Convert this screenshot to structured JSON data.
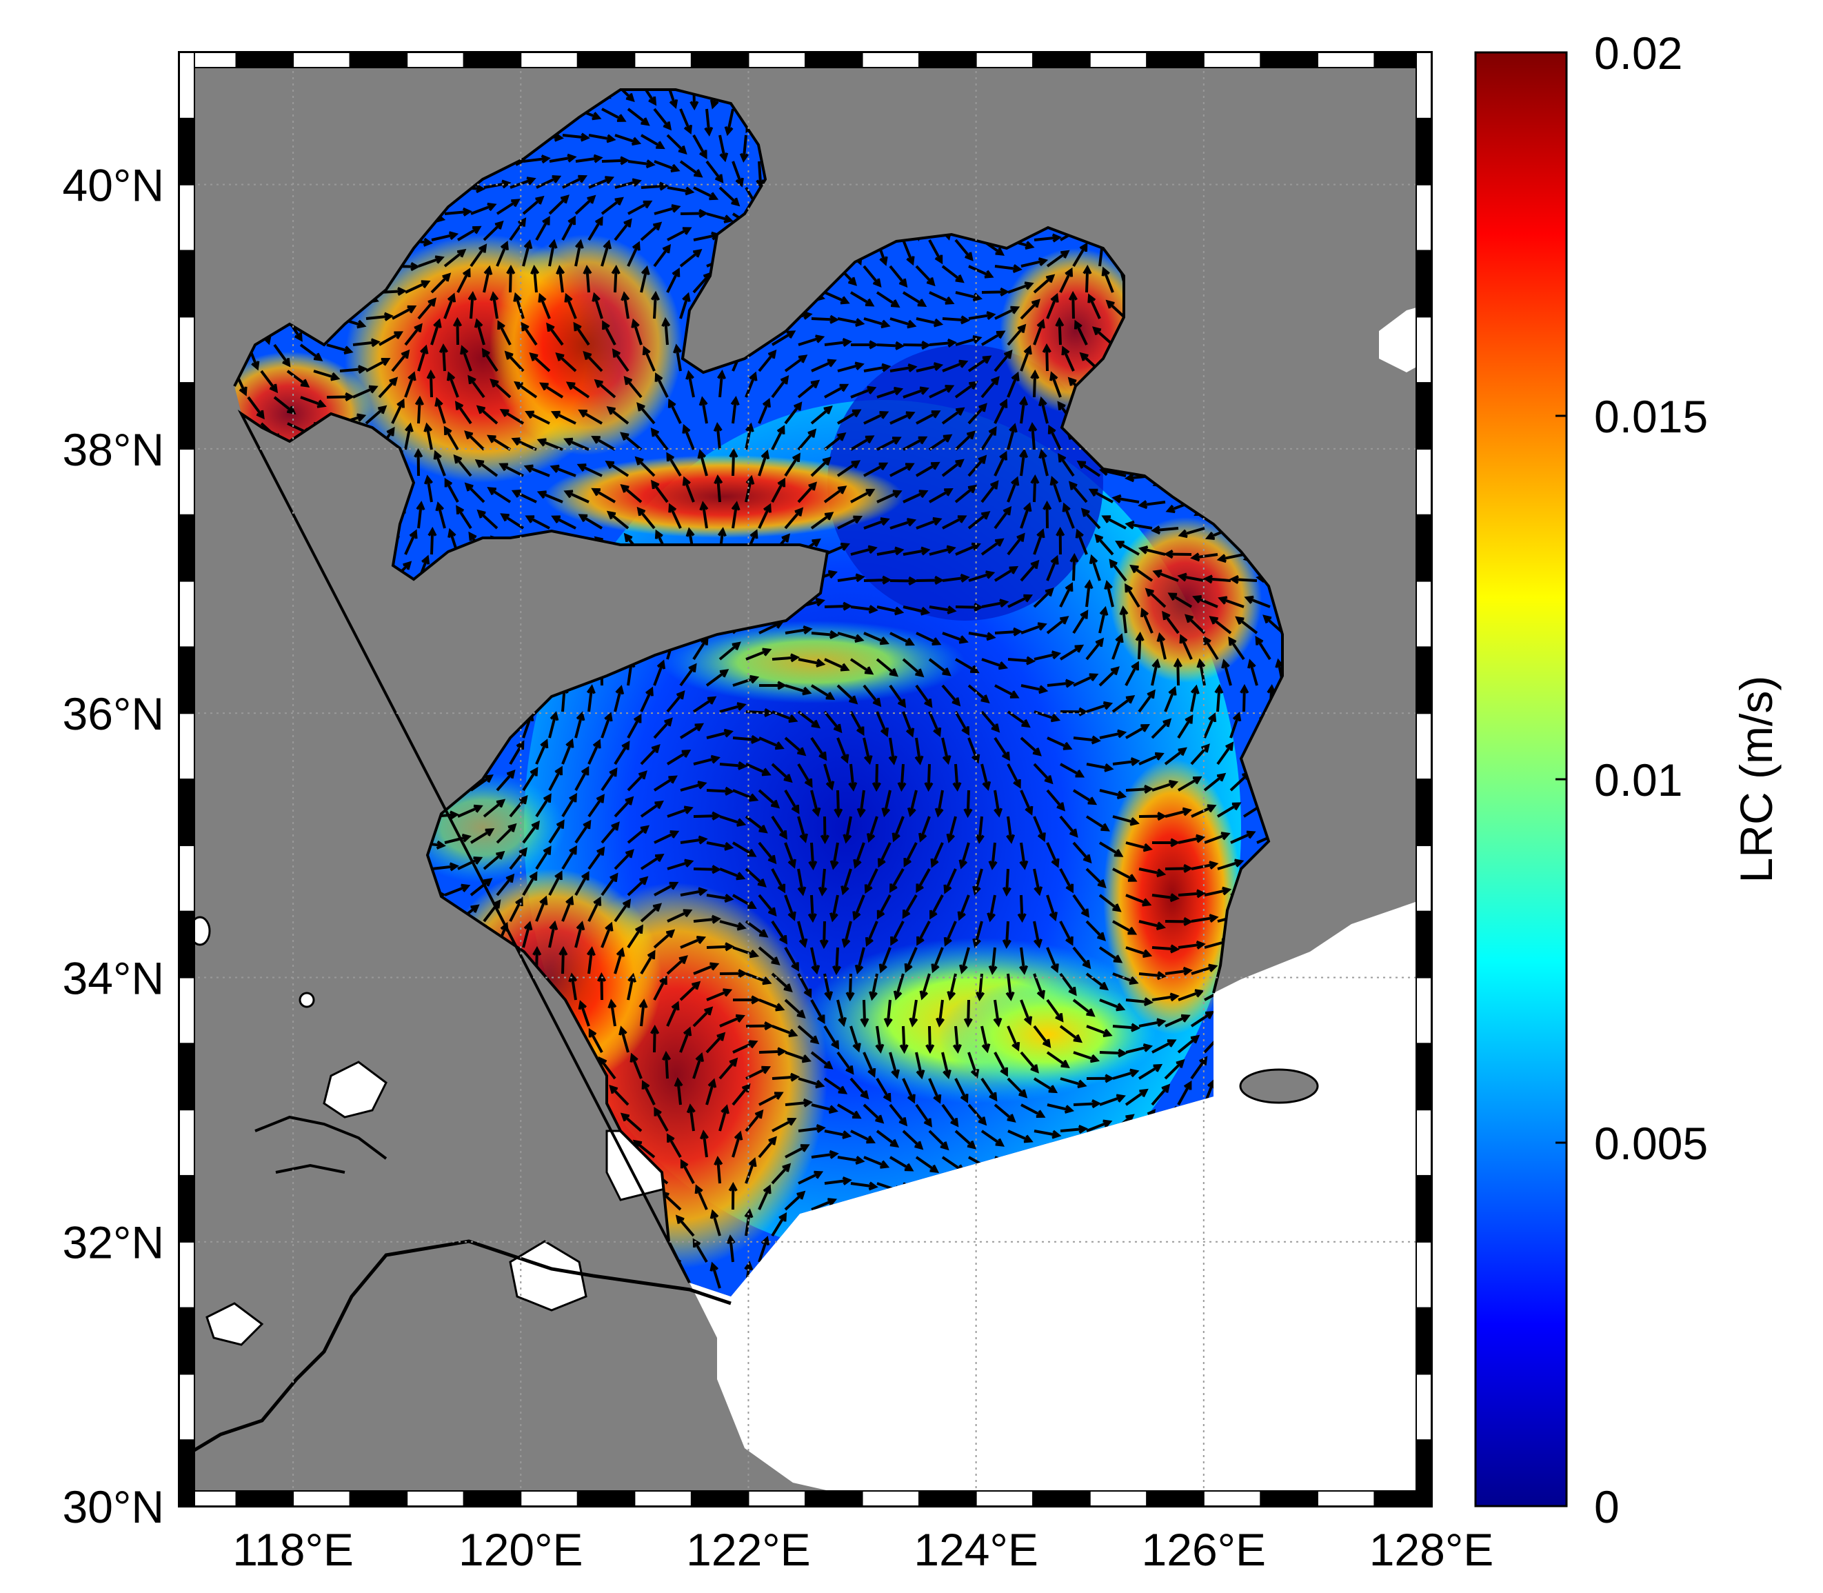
{
  "map": {
    "lon_range": [
      117,
      128
    ],
    "lat_range": [
      30,
      41
    ],
    "lon_ticks": [
      {
        "value": 118,
        "label": "118°E"
      },
      {
        "value": 120,
        "label": "120°E"
      },
      {
        "value": 122,
        "label": "122°E"
      },
      {
        "value": 124,
        "label": "124°E"
      },
      {
        "value": 126,
        "label": "126°E"
      },
      {
        "value": 128,
        "label": "128°E"
      }
    ],
    "lat_ticks": [
      {
        "value": 30,
        "label": "30°N"
      },
      {
        "value": 32,
        "label": "32°N"
      },
      {
        "value": 34,
        "label": "34°N"
      },
      {
        "value": 36,
        "label": "36°N"
      },
      {
        "value": 38,
        "label": "38°N"
      },
      {
        "value": 40,
        "label": "40°N"
      }
    ],
    "land_color": "#808080",
    "frame": "black-and-white checkered border",
    "grid": "dotted"
  },
  "colorbar": {
    "label": "LRC (m/s)",
    "min": 0,
    "max": 0.02,
    "ticks": [
      {
        "value": 0,
        "label": "0"
      },
      {
        "value": 0.005,
        "label": "0.005"
      },
      {
        "value": 0.01,
        "label": "0.01"
      },
      {
        "value": 0.015,
        "label": "0.015"
      },
      {
        "value": 0.02,
        "label": "0.02"
      }
    ],
    "colormap": "jet",
    "colors": [
      "#00008f",
      "#0000ff",
      "#0080ff",
      "#00ffff",
      "#80ff80",
      "#ffff00",
      "#ff8000",
      "#ff0000",
      "#800000"
    ]
  }
}
